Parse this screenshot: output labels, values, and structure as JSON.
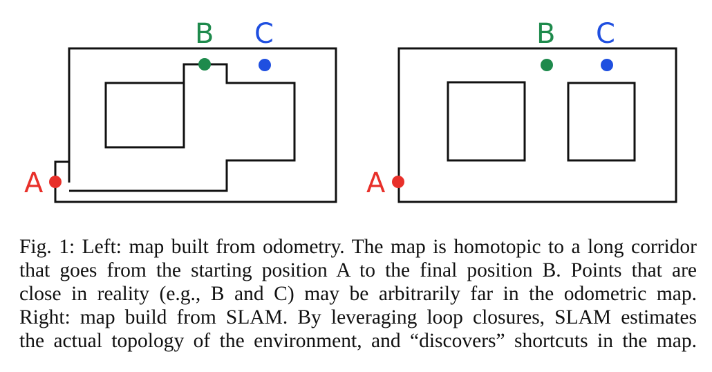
{
  "colors": {
    "a": "#e8302a",
    "b": "#1e8a4c",
    "c": "#1f4fe0",
    "wall": "#111111"
  },
  "left_map": {
    "a_label": "A",
    "b_label": "B",
    "c_label": "C"
  },
  "right_map": {
    "a_label": "A",
    "b_label": "B",
    "c_label": "C"
  },
  "caption": {
    "lines": [
      "Fig. 1: Left: map built from odometry. The map is homotopic to a long corridor",
      "that goes from the starting position A to the final position B. Points that are",
      "close in reality (e.g., B and C) may be arbitrarily far in the odometric map.",
      "Right: map build from SLAM. By leveraging loop closures, SLAM estimates",
      "the actual topology of the environment, and “discovers” shortcuts in the map."
    ]
  }
}
